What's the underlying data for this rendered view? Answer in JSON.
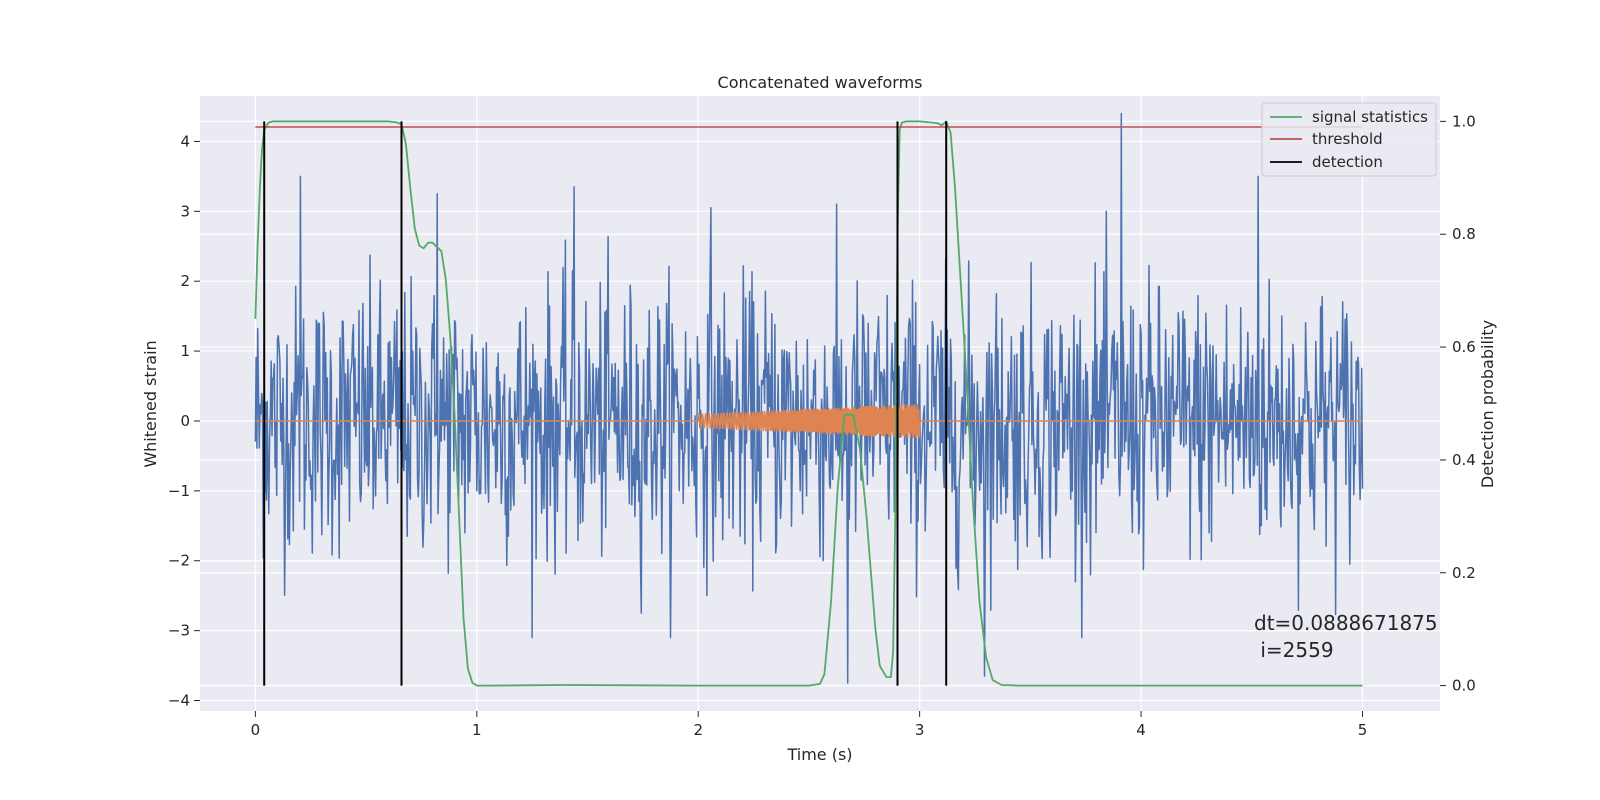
{
  "chart_data": {
    "type": "line",
    "title": "Concatenated waveforms",
    "xlabel": "Time (s)",
    "ylabel_left": "Whitened strain",
    "ylabel_right": "Detection probability",
    "xlim": [
      -0.25,
      5.35
    ],
    "ylim_left": [
      -4.15,
      4.65
    ],
    "ylim_right": [
      -0.045,
      1.045
    ],
    "x_ticks": [
      0,
      1,
      2,
      3,
      4,
      5
    ],
    "y_left_ticks": [
      -4,
      -3,
      -2,
      -1,
      0,
      1,
      2,
      3,
      4
    ],
    "y_right_ticks": [
      0.0,
      0.2,
      0.4,
      0.6,
      0.8,
      1.0
    ],
    "grid": true,
    "legend_position": "top-right",
    "legend": [
      "signal statistics",
      "threshold",
      "detection"
    ],
    "colors": {
      "strain": "#4c72b0",
      "waveform": "#dd8452",
      "statistics": "#55a868",
      "threshold": "#c44e52",
      "detection": "#000000",
      "background": "#eaeaf2",
      "grid": "#ffffff"
    },
    "strain_series": {
      "axis": "left",
      "x_start": 0.0,
      "x_end": 5.0,
      "samples": 1400,
      "typical_range": [
        -2.5,
        2.5
      ],
      "peak_values": [
        3.5,
        3.25,
        3.35,
        3.05,
        -3.75,
        -3.65,
        4.4
      ]
    },
    "waveform_series": {
      "axis": "left",
      "x": [
        0.0,
        2.0,
        2.0,
        3.0,
        3.0,
        5.0
      ],
      "amplitude": [
        0.0,
        0.0,
        0.1,
        0.25,
        0.0,
        0.0
      ]
    },
    "statistics_series": {
      "name": "signal statistics",
      "axis": "right",
      "x": [
        0.0,
        0.01,
        0.02,
        0.03,
        0.04,
        0.06,
        0.08,
        0.1,
        0.15,
        0.3,
        0.6,
        0.64,
        0.66,
        0.68,
        0.7,
        0.72,
        0.74,
        0.76,
        0.78,
        0.8,
        0.84,
        0.86,
        0.88,
        0.9,
        0.92,
        0.94,
        0.96,
        0.98,
        1.0,
        1.05,
        1.4,
        2.0,
        2.5,
        2.55,
        2.57,
        2.6,
        2.63,
        2.66,
        2.7,
        2.73,
        2.76,
        2.8,
        2.82,
        2.85,
        2.87,
        2.88,
        2.89,
        2.9,
        2.91,
        2.92,
        2.94,
        3.0,
        3.08,
        3.1,
        3.12,
        3.14,
        3.16,
        3.18,
        3.2,
        3.22,
        3.24,
        3.27,
        3.3,
        3.33,
        3.37,
        3.45,
        4.0,
        5.0
      ],
      "values": [
        0.65,
        0.78,
        0.88,
        0.95,
        0.985,
        0.998,
        1.0,
        1.0,
        1.0,
        1.0,
        1.0,
        0.998,
        0.995,
        0.96,
        0.88,
        0.81,
        0.78,
        0.775,
        0.785,
        0.785,
        0.77,
        0.72,
        0.62,
        0.48,
        0.3,
        0.12,
        0.03,
        0.005,
        0.0,
        0.0,
        0.001,
        0.0,
        0.0,
        0.003,
        0.02,
        0.15,
        0.35,
        0.48,
        0.48,
        0.42,
        0.3,
        0.1,
        0.035,
        0.015,
        0.015,
        0.06,
        0.3,
        0.8,
        0.985,
        0.998,
        1.0,
        1.0,
        0.997,
        0.993,
        1.0,
        0.98,
        0.88,
        0.75,
        0.62,
        0.48,
        0.33,
        0.15,
        0.05,
        0.01,
        0.001,
        0.0,
        0.0,
        0.0
      ]
    },
    "threshold_series": {
      "name": "threshold",
      "axis": "right",
      "x": [
        0.0,
        5.0
      ],
      "values": [
        0.99,
        0.99
      ]
    },
    "detection_series": {
      "name": "detection",
      "axis": "right",
      "x": [
        0.04,
        0.66,
        2.9,
        3.12
      ],
      "ymin": 0.0,
      "ymax": 1.0
    },
    "annotation": {
      "line1": "dt=0.0888671875",
      "line2": " i=2559",
      "x": 4.5,
      "y_left": -3.3
    }
  }
}
